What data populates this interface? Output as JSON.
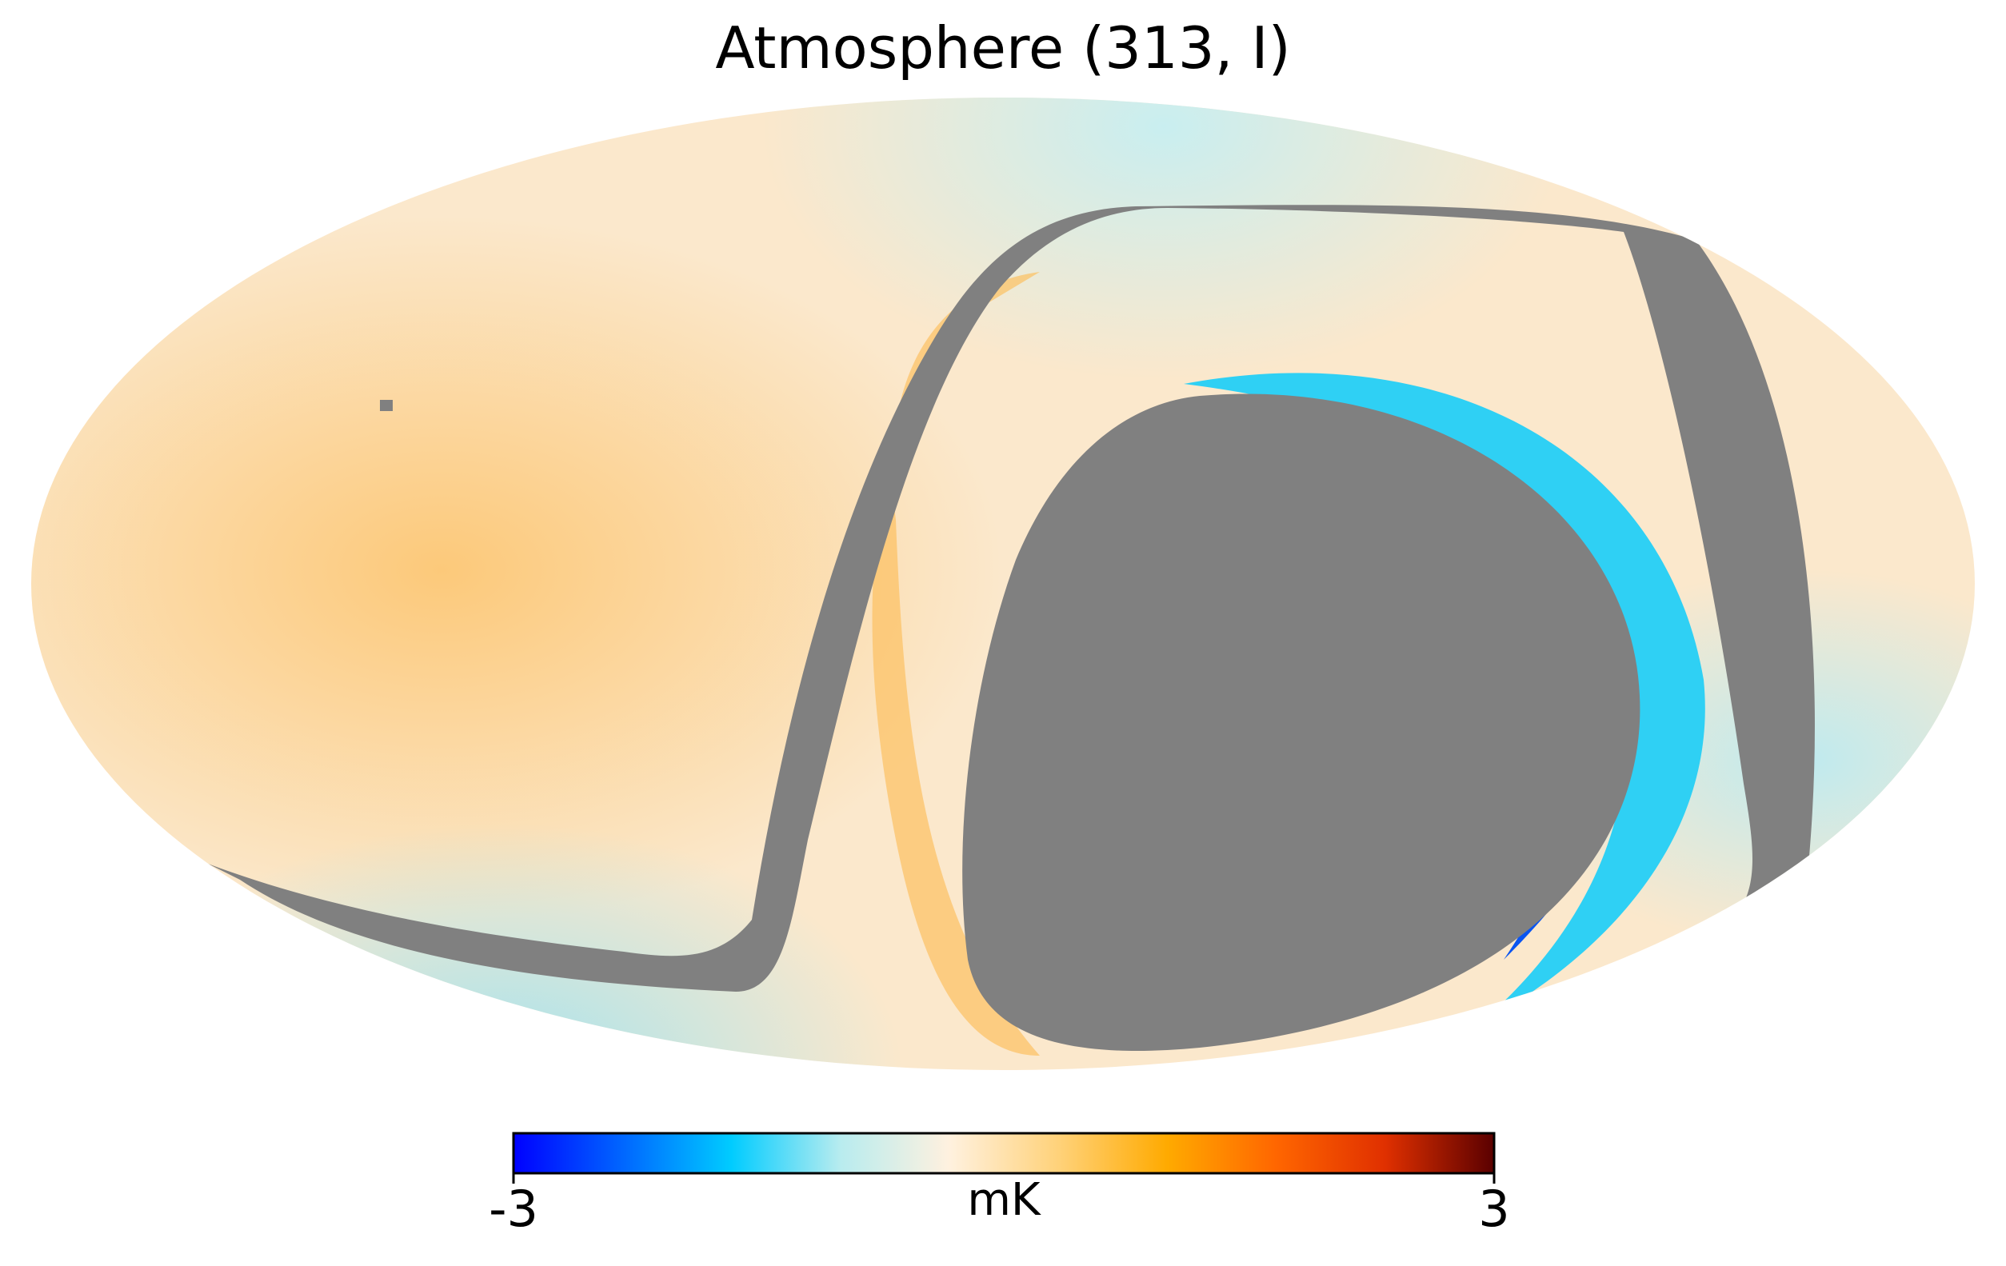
{
  "title": "Atmosphere (313, I)",
  "colorbar": {
    "min_label": "-3",
    "max_label": "3",
    "unit": "mK",
    "range": [
      -3,
      3
    ],
    "colormap": [
      "#0000ff",
      "#0066ff",
      "#00ccff",
      "#b8ecef",
      "#fff1df",
      "#ffd27a",
      "#ffaa00",
      "#ff6600",
      "#e03000",
      "#5a0000"
    ]
  },
  "map": {
    "projection": "Mollweide",
    "background_color": "#fbe8cc",
    "masked_color": "#808080",
    "masked_regions": [
      "s-shaped band",
      "central oval",
      "pixel spot"
    ]
  }
}
